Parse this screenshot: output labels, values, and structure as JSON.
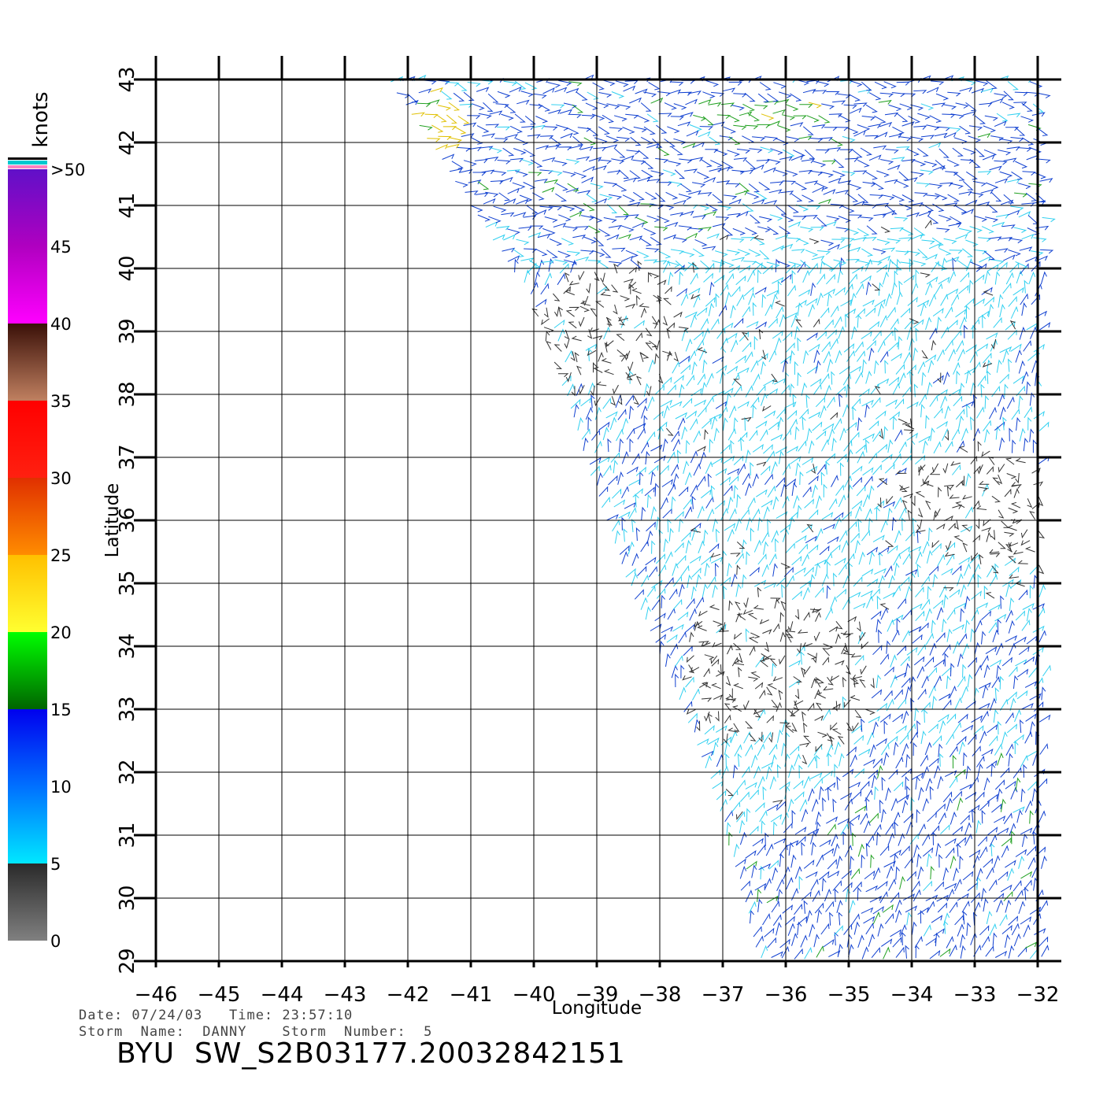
{
  "chart_data": {
    "type": "scatter",
    "plot_kind": "wind vector field (scatterometer swath)",
    "xlabel": "Longitude",
    "ylabel": "Latitude",
    "xlim": [
      -46,
      -32
    ],
    "ylim": [
      29,
      43
    ],
    "x_ticks": [
      -46,
      -45,
      -44,
      -43,
      -42,
      -41,
      -40,
      -39,
      -38,
      -37,
      -36,
      -35,
      -34,
      -33,
      -32
    ],
    "y_ticks": [
      29,
      30,
      31,
      32,
      33,
      34,
      35,
      36,
      37,
      38,
      39,
      40,
      41,
      42,
      43
    ],
    "grid": true,
    "swath_edge_west": [
      [
        -42.3,
        43
      ],
      [
        -40,
        39.5
      ],
      [
        -38.5,
        35
      ],
      [
        -37.6,
        33
      ],
      [
        -37,
        31.3
      ],
      [
        -36.4,
        29
      ]
    ],
    "swath_east_limit": -32,
    "regions": [
      {
        "label": "calm (0-5 kt)",
        "band": 0,
        "center": [
          -38.6,
          39.0
        ],
        "radius": [
          1.4,
          1.1
        ]
      },
      {
        "label": "calm (0-5 kt)",
        "band": 0,
        "center": [
          -36.1,
          33.6
        ],
        "radius": [
          1.5,
          1.6
        ]
      },
      {
        "label": "calm (0-5 kt)",
        "band": 0,
        "center": [
          -33.0,
          36.0
        ],
        "radius": [
          1.6,
          1.1
        ]
      },
      {
        "label": "5-10 kt",
        "band": 1,
        "center": [
          -35.5,
          38.8
        ],
        "radius": [
          3.2,
          2.2
        ]
      },
      {
        "label": "5-10 kt",
        "band": 1,
        "center": [
          -35.0,
          35.4
        ],
        "radius": [
          3.2,
          1.0
        ]
      },
      {
        "label": "5-10 kt",
        "band": 1,
        "center": [
          -36.5,
          31.8
        ],
        "radius": [
          1.3,
          1.1
        ]
      },
      {
        "label": "10-15 kt",
        "band": 2,
        "center": [
          -37.0,
          41.8
        ],
        "radius": [
          5.5,
          1.4
        ]
      },
      {
        "label": "10-15 kt",
        "band": 2,
        "center": [
          -34.0,
          30.5
        ],
        "radius": [
          3.5,
          1.8
        ]
      },
      {
        "label": "15-20 kt",
        "band": 3,
        "center": [
          -36.6,
          42.4
        ],
        "radius": [
          2.2,
          0.5
        ]
      },
      {
        "label": "20+ kt",
        "band": 4,
        "center": [
          -41.6,
          42.2
        ],
        "radius": [
          0.5,
          0.6
        ]
      }
    ],
    "colorbar": {
      "title": "knots",
      "labels": [
        ">50",
        "45",
        "40",
        "35",
        "30",
        "25",
        "20",
        "15",
        "10",
        "5",
        "0"
      ],
      "stops": [
        {
          "value": 0,
          "color": "#808080"
        },
        {
          "value": 5,
          "color": "#2a2a2a"
        },
        {
          "value": 5,
          "color": "#00e8ff"
        },
        {
          "value": 10,
          "color": "#0070ff"
        },
        {
          "value": 15,
          "color": "#0000ee"
        },
        {
          "value": 15,
          "color": "#006400"
        },
        {
          "value": 20,
          "color": "#00ff00"
        },
        {
          "value": 20,
          "color": "#ffff30"
        },
        {
          "value": 25,
          "color": "#ffc000"
        },
        {
          "value": 25,
          "color": "#ff8c00"
        },
        {
          "value": 30,
          "color": "#e03000"
        },
        {
          "value": 30,
          "color": "#ff2010"
        },
        {
          "value": 35,
          "color": "#ff0000"
        },
        {
          "value": 35,
          "color": "#c08060"
        },
        {
          "value": 40,
          "color": "#3a1008"
        },
        {
          "value": 40,
          "color": "#ff00ff"
        },
        {
          "value": 45,
          "color": "#b000c0"
        },
        {
          "value": 50,
          "color": "#6010c8"
        }
      ],
      "top_swatches": [
        "#000000",
        "#00c8d0",
        "#ff80c0"
      ]
    },
    "vector_colors": [
      "#333333",
      "#30d0f0",
      "#1040d0",
      "#20a020",
      "#e0c000"
    ]
  },
  "footer": {
    "date_line": "Date: 07/24/03   Time: 23:57:10",
    "storm_line": "Storm  Name:  DANNY    Storm  Number:  5",
    "title": "BYU  SW_S2B03177.20032842151"
  }
}
